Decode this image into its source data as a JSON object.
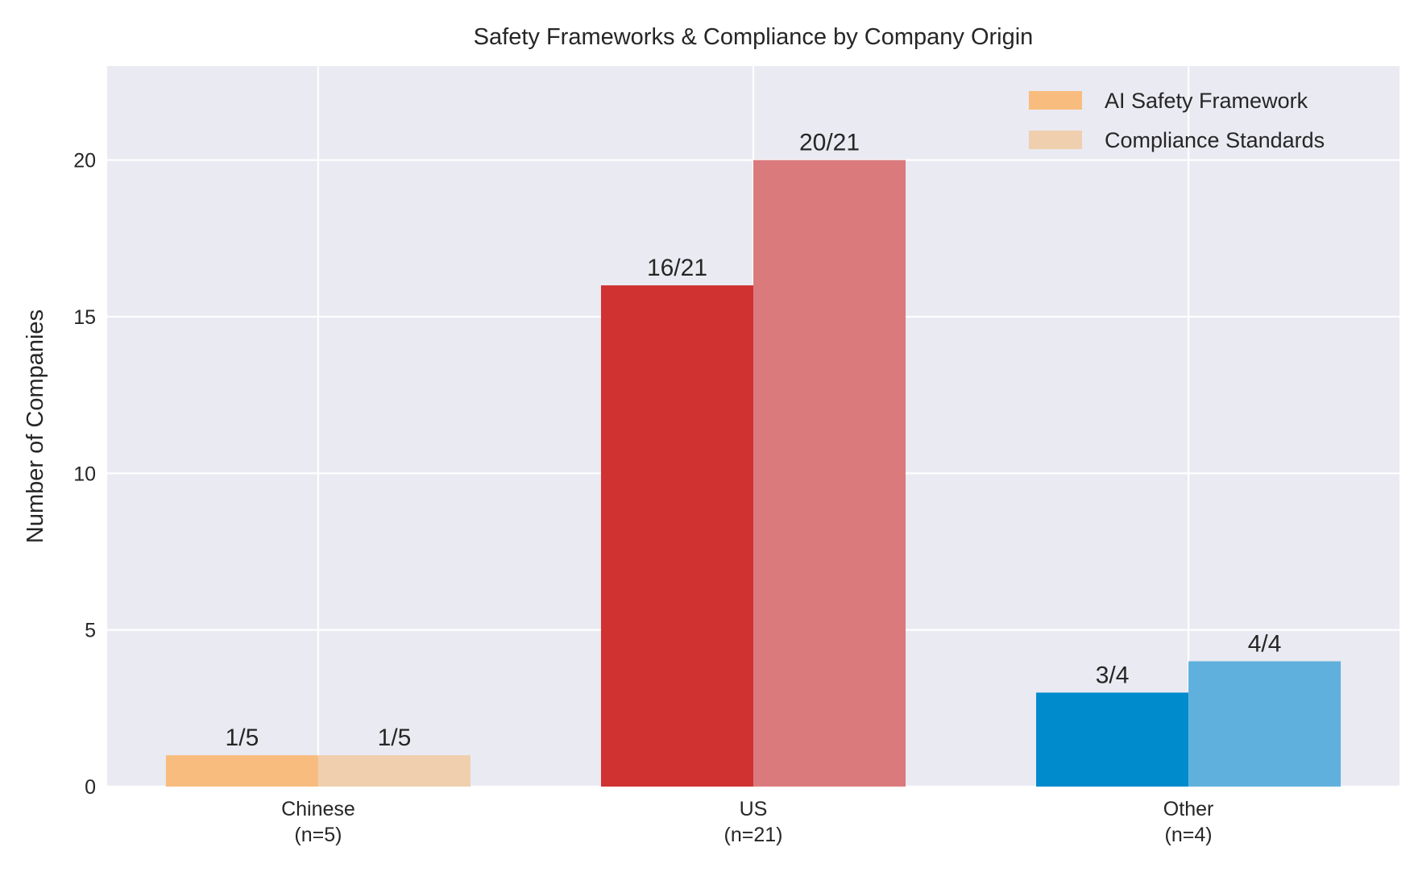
{
  "chart_data": {
    "type": "bar",
    "title": "Safety Frameworks & Compliance by Company Origin",
    "xlabel": "",
    "ylabel": "Number of Companies",
    "categories": [
      "Chinese\n(n=5)",
      "US\n(n=21)",
      "Other\n(n=4)"
    ],
    "category_lines": [
      [
        "Chinese",
        "(n=5)"
      ],
      [
        "US",
        "(n=21)"
      ],
      [
        "Other",
        "(n=4)"
      ]
    ],
    "series": [
      {
        "name": "AI Safety Framework",
        "values": [
          1,
          16,
          3
        ],
        "labels": [
          "1/5",
          "16/21",
          "3/4"
        ],
        "colors": [
          "#F8BC7E",
          "#D03131",
          "#008BCD"
        ]
      },
      {
        "name": "Compliance Standards",
        "values": [
          1,
          20,
          4
        ],
        "labels": [
          "1/5",
          "20/21",
          "4/4"
        ],
        "colors": [
          "#F0CFAE",
          "#DB7A7D",
          "#5FB0DC"
        ]
      }
    ],
    "ylim": [
      0,
      23
    ],
    "yticks": [
      0,
      5,
      10,
      15,
      20
    ],
    "grid": true,
    "legend_position": "top-right",
    "background": "#EAEAF2"
  }
}
